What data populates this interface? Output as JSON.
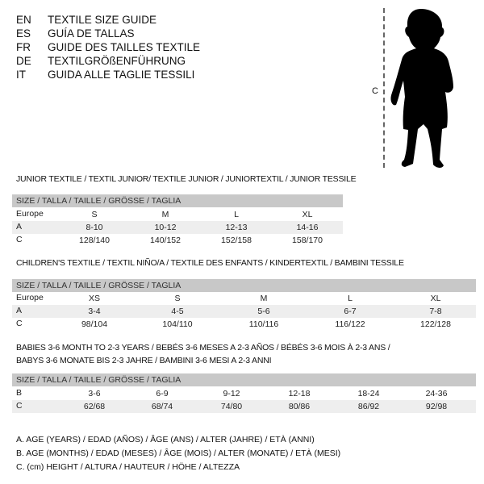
{
  "header": {
    "languages": [
      {
        "code": "EN",
        "title": "TEXTILE SIZE GUIDE"
      },
      {
        "code": "ES",
        "title": "GUÍA DE TALLAS"
      },
      {
        "code": "FR",
        "title": "GUIDE DES TAILLES TEXTILE"
      },
      {
        "code": "DE",
        "title": "TEXTILGRÖßENFÜHRUNG"
      },
      {
        "code": "IT",
        "title": "GUIDA ALLE TAGLIE TESSILI"
      }
    ]
  },
  "figure": {
    "measure_label": "C",
    "icon": "child-silhouette"
  },
  "tables": [
    {
      "title": "JUNIOR TEXTILE / TEXTIL JUNIOR/ TEXTILE JUNIOR / JUNIORTEXTIL / JUNIOR TESSILE",
      "header": "SIZE / TALLA / TAILLE / GRÖSSE / TAGLIA",
      "rows": [
        {
          "label": "Europe",
          "values": [
            "S",
            "M",
            "L",
            "XL"
          ]
        },
        {
          "label": "A",
          "values": [
            "8-10",
            "10-12",
            "12-13",
            "14-16"
          ]
        },
        {
          "label": "C",
          "values": [
            "128/140",
            "140/152",
            "152/158",
            "158/170"
          ]
        }
      ]
    },
    {
      "title": "CHILDREN'S TEXTILE / TEXTIL NIÑO/A / TEXTILE DES ENFANTS / KINDERTEXTIL / BAMBINI TESSILE",
      "header": "SIZE / TALLA / TAILLE / GRÖSSE / TAGLIA",
      "rows": [
        {
          "label": "Europe",
          "values": [
            "XS",
            "S",
            "M",
            "L",
            "XL"
          ]
        },
        {
          "label": "A",
          "values": [
            "3-4",
            "4-5",
            "5-6",
            "6-7",
            "7-8"
          ]
        },
        {
          "label": "C",
          "values": [
            "98/104",
            "104/110",
            "110/116",
            "116/122",
            "122/128"
          ]
        }
      ]
    },
    {
      "title": "BABIES 3-6 MONTH TO 2-3 YEARS / BEBÉS 3-6 MESES A 2-3 AÑOS / BÉBÉS 3-6 MOIS À 2-3 ANS /",
      "title2": "BABYS 3-6 MONATE BIS 2-3 JAHRE / BAMBINI 3-6 MESI A 2-3 ANNI",
      "header": "SIZE / TALLA / TAILLE / GRÖSSE / TAGLIA",
      "rows": [
        {
          "label": "B",
          "values": [
            "3-6",
            "6-9",
            "9-12",
            "12-18",
            "18-24",
            "24-36"
          ]
        },
        {
          "label": "C",
          "values": [
            "62/68",
            "68/74",
            "74/80",
            "80/86",
            "86/92",
            "92/98"
          ]
        }
      ]
    }
  ],
  "legend": [
    "A. AGE (YEARS) / EDAD (AÑOS) / ÂGE (ANS) / ALTER (JAHRE) / ETÀ (ANNI)",
    "B. AGE (MONTHS) / EDAD (MESES) / ÂGE (MOIS) / ALTER (MONATE) / ETÀ (MESI)",
    "C. (cm) HEIGHT / ALTURA / HAUTEUR / HÖHE / ALTEZZA"
  ],
  "colors": {
    "header_band": "#c8c8c8",
    "alt_row": "#eeeeee"
  }
}
